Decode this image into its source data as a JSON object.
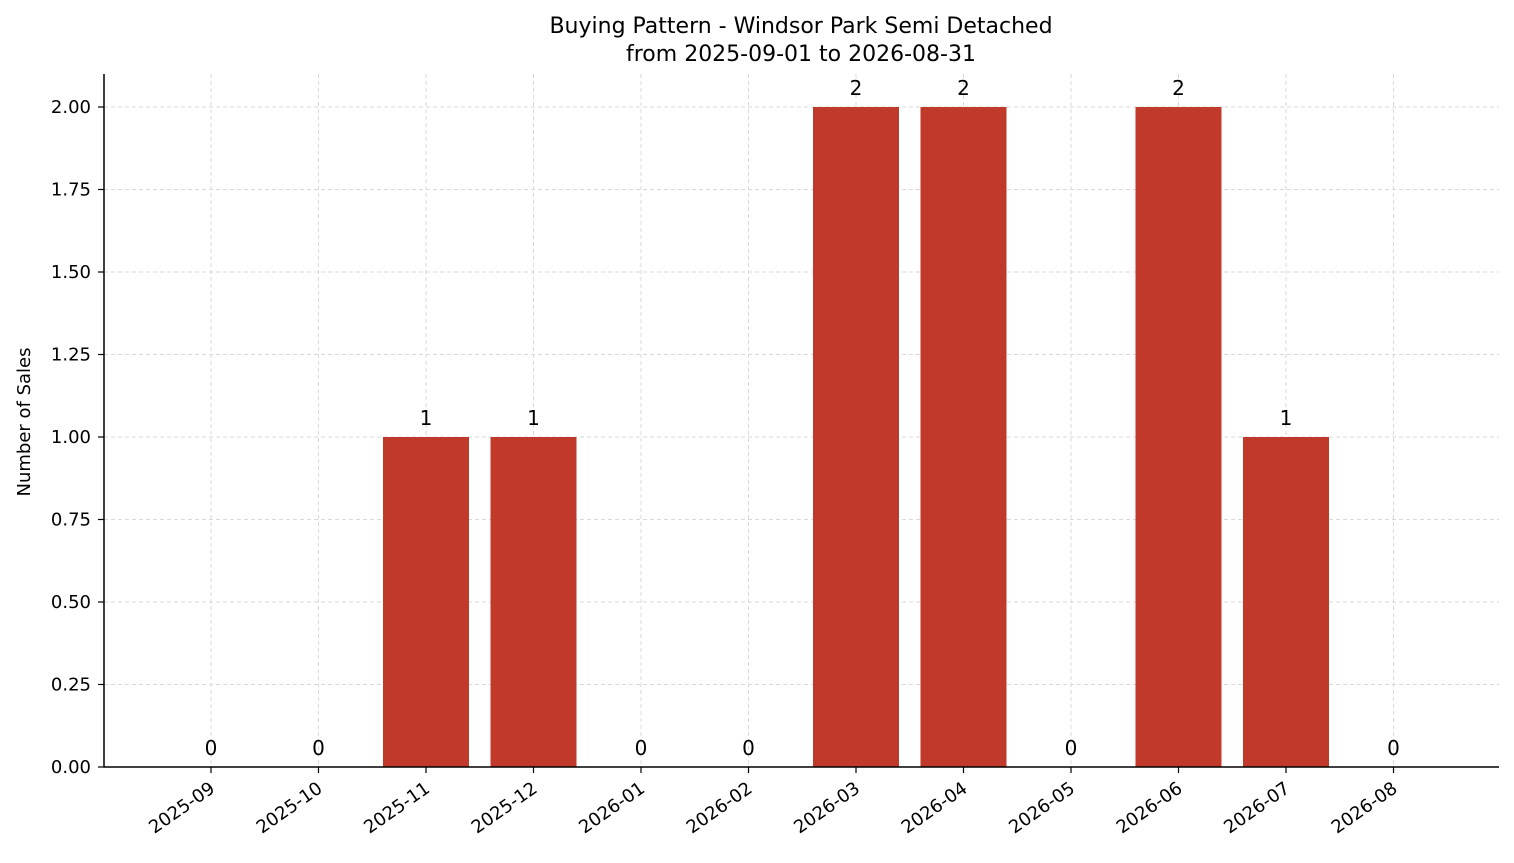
{
  "chart_data": {
    "type": "bar",
    "title": "Buying Pattern - Windsor Park Semi Detached",
    "subtitle": "from 2025-09-01 to 2026-08-31",
    "xlabel": "",
    "ylabel": "Number of Sales",
    "categories": [
      "2025-09",
      "2025-10",
      "2025-11",
      "2025-12",
      "2026-01",
      "2026-02",
      "2026-03",
      "2026-04",
      "2026-05",
      "2026-06",
      "2026-07",
      "2026-08"
    ],
    "values": [
      0,
      0,
      1,
      1,
      0,
      0,
      2,
      2,
      0,
      2,
      1,
      0
    ],
    "data_labels": [
      "0",
      "0",
      "1",
      "1",
      "0",
      "0",
      "2",
      "2",
      "0",
      "2",
      "1",
      "0"
    ],
    "ylim": [
      0,
      2.1
    ],
    "yticks": [
      0,
      0.25,
      0.5,
      0.75,
      1.0,
      1.25,
      1.5,
      1.75,
      2.0
    ],
    "ytick_labels": [
      "0.00",
      "0.25",
      "0.50",
      "0.75",
      "1.00",
      "1.25",
      "1.50",
      "1.75",
      "2.00"
    ],
    "grid": true,
    "colors": {
      "bar": "#c0392b",
      "grid": "#d9d9d9",
      "axis": "#000000"
    }
  }
}
